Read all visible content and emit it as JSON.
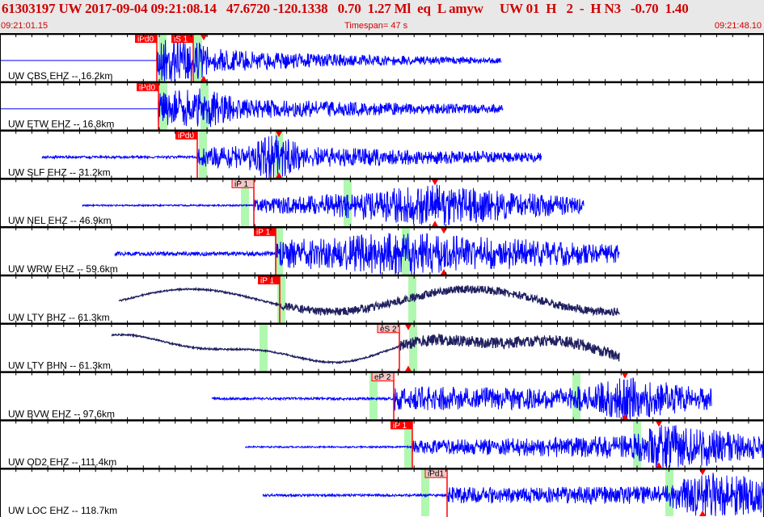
{
  "header": {
    "title": "61303197 UW 2017-09-04 09:21:08.14   47.6720 -120.1338   0.70  1.27 Ml  eq  L amyw     UW 01  H   2  -  H N3   -0.70  1.40",
    "start_time": "09:21:01.15",
    "timespan": "Timespan=  47 s",
    "end_time": "09:21:48.10"
  },
  "colors": {
    "trace": "#0000ff",
    "trace_broadband": "#202060",
    "pick_line": "#ff0000",
    "pick_solid": "#ff0000",
    "pick_light": "#f4c8c8",
    "window": "#b0f8b0",
    "background": "#ffffff"
  },
  "channels": [
    {
      "label": "UW CBS EHZ -- 16.2km",
      "picks": [
        {
          "text": "iPd0",
          "style": "solid"
        },
        {
          "text": "iS 1",
          "style": "solid"
        }
      ]
    },
    {
      "label": "UW ETW EHZ -- 16.8km",
      "picks": [
        {
          "text": "iPd0",
          "style": "solid"
        }
      ]
    },
    {
      "label": "UW SLF EHZ -- 31.2km",
      "picks": [
        {
          "text": "iPd0",
          "style": "solid"
        }
      ]
    },
    {
      "label": "UW NEL EHZ -- 46.9km",
      "picks": [
        {
          "text": "iP 1",
          "style": "light"
        }
      ]
    },
    {
      "label": "UW WRW EHZ -- 59.6km",
      "picks": [
        {
          "text": "iP 1",
          "style": "solid"
        }
      ]
    },
    {
      "label": "UW LTY BHZ -- 61.3km",
      "picks": [
        {
          "text": "iP 1",
          "style": "solid"
        }
      ]
    },
    {
      "label": "UW LTY BHN -- 61.3km",
      "picks": [
        {
          "text": "eS 2",
          "style": "light"
        }
      ]
    },
    {
      "label": "UW BVW EHZ -- 97.6km",
      "picks": [
        {
          "text": "eP 2",
          "style": "light"
        }
      ]
    },
    {
      "label": "UW OD2 EHZ -- 111.4km",
      "picks": [
        {
          "text": "iP 1",
          "style": "solid"
        }
      ]
    },
    {
      "label": "UW LOC EHZ -- 118.7km",
      "picks": [
        {
          "text": "iPd1",
          "style": "light"
        }
      ]
    }
  ]
}
